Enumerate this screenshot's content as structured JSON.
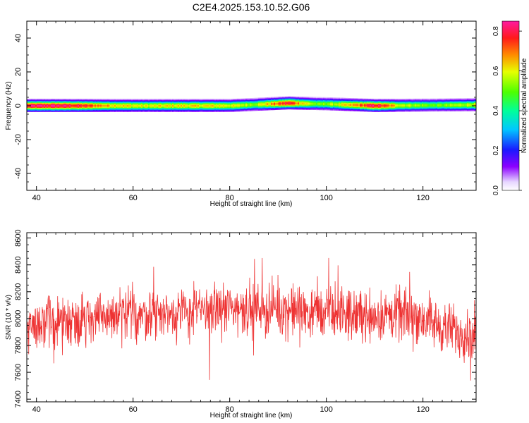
{
  "chart_data": [
    {
      "type": "heatmap",
      "title": "C2E4.2025.153.10.52.G06",
      "xlabel": "Height of straight line (km)",
      "ylabel": "Frequency (Hz)",
      "xlim": [
        38,
        131
      ],
      "ylim": [
        -50,
        50
      ],
      "xticks": [
        40,
        60,
        80,
        100,
        120
      ],
      "yticks": [
        -40,
        -20,
        0,
        20,
        40
      ],
      "colorbar": {
        "label": "Normalized spectral amplitude",
        "range": [
          0,
          0.85
        ],
        "ticks": [
          "0.0",
          "0.2",
          "0.4",
          "0.6",
          "0.8"
        ]
      },
      "band": {
        "center_hz": [
          {
            "x": 38,
            "y": 0
          },
          {
            "x": 60,
            "y": 0
          },
          {
            "x": 80,
            "y": 0
          },
          {
            "x": 92,
            "y": 1.5
          },
          {
            "x": 100,
            "y": 1
          },
          {
            "x": 110,
            "y": 0
          },
          {
            "x": 131,
            "y": 0.5
          }
        ],
        "peak_amplitude": [
          {
            "x": 38,
            "v": 0.82
          },
          {
            "x": 44,
            "v": 0.85
          },
          {
            "x": 49,
            "v": 0.78
          },
          {
            "x": 55,
            "v": 0.66
          },
          {
            "x": 62,
            "v": 0.6
          },
          {
            "x": 70,
            "v": 0.63
          },
          {
            "x": 78,
            "v": 0.62
          },
          {
            "x": 85,
            "v": 0.55
          },
          {
            "x": 92,
            "v": 0.8
          },
          {
            "x": 98,
            "v": 0.5
          },
          {
            "x": 104,
            "v": 0.62
          },
          {
            "x": 110,
            "v": 0.83
          },
          {
            "x": 115,
            "v": 0.6
          },
          {
            "x": 122,
            "v": 0.5
          },
          {
            "x": 131,
            "v": 0.6
          }
        ]
      }
    },
    {
      "type": "line",
      "xlabel": "Height of straight line (km)",
      "ylabel": "SNR (10 * v/v)",
      "xlim": [
        38,
        131
      ],
      "ylim": [
        7380,
        8640
      ],
      "xticks": [
        40,
        60,
        80,
        100,
        120
      ],
      "yticks": [
        7400,
        7600,
        7800,
        8000,
        8200,
        8400,
        8600
      ],
      "color": "#ee3333",
      "trend": [
        {
          "x": 38,
          "y": 7950
        },
        {
          "x": 50,
          "y": 8000
        },
        {
          "x": 60,
          "y": 8030
        },
        {
          "x": 70,
          "y": 8040
        },
        {
          "x": 80,
          "y": 8080
        },
        {
          "x": 90,
          "y": 8070
        },
        {
          "x": 100,
          "y": 8040
        },
        {
          "x": 110,
          "y": 8020
        },
        {
          "x": 118,
          "y": 8030
        },
        {
          "x": 125,
          "y": 7920
        },
        {
          "x": 131,
          "y": 7880
        }
      ],
      "spread": 140,
      "n_points": 1400
    }
  ]
}
